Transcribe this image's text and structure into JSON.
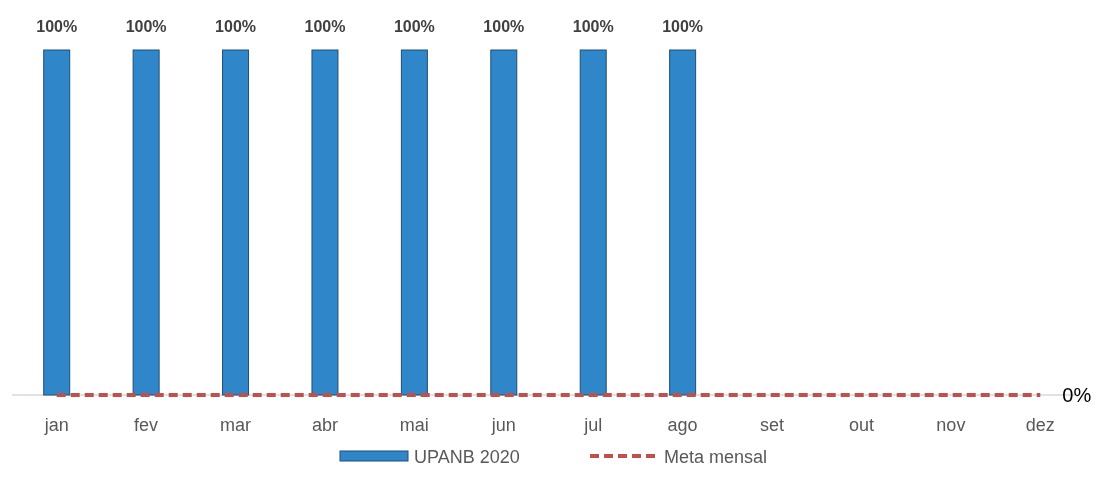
{
  "chart_data": {
    "type": "bar",
    "categories": [
      "jan",
      "fev",
      "mar",
      "abr",
      "mai",
      "jun",
      "jul",
      "ago",
      "set",
      "out",
      "nov",
      "dez"
    ],
    "legend": "bottom",
    "series": [
      {
        "name": "UPANB 2020",
        "color": "#2f86c8",
        "values": [
          100,
          100,
          100,
          100,
          100,
          100,
          100,
          100,
          null,
          null,
          null,
          null
        ],
        "value_labels": [
          "100%",
          "100%",
          "100%",
          "100%",
          "100%",
          "100%",
          "100%",
          "100%",
          null,
          null,
          null,
          null
        ]
      }
    ],
    "ref_lines": [
      {
        "axis": "y",
        "value": 0,
        "label": "Meta mensal",
        "color": "#c0504d",
        "line_style": "dashed"
      }
    ],
    "annotations": [
      {
        "text": "0%",
        "x": "dez",
        "y": 0
      }
    ]
  }
}
